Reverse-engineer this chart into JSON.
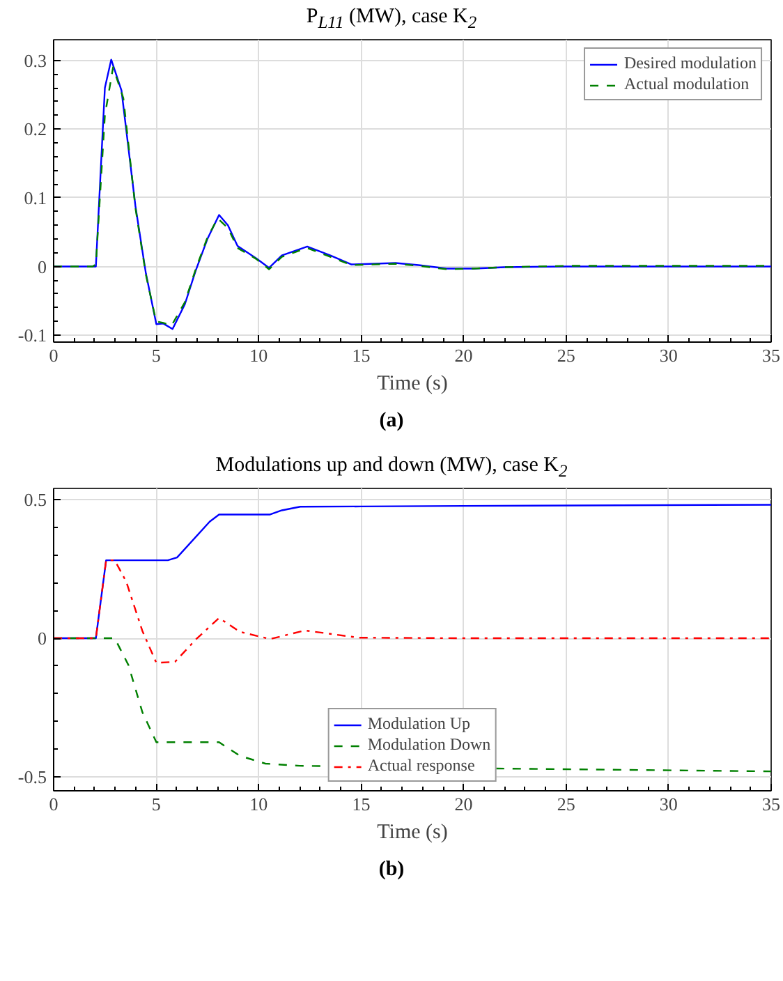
{
  "chart_data": [
    {
      "type": "line",
      "title": "P$_{L11}$ (MW), case K$_{2}$",
      "xlabel": "Time (s)",
      "annotations": [
        "(a)"
      ],
      "xlim": [
        0,
        35
      ],
      "ylim": [
        -0.11,
        0.33
      ],
      "xticks": [
        0,
        5,
        10,
        15,
        20,
        25,
        30,
        35
      ],
      "yticks": [
        -0.1,
        0,
        0.1,
        0.2,
        0.3
      ],
      "grid": true,
      "legend": "top right",
      "series": [
        {
          "name": "Desired modulation",
          "color": "#0000ff",
          "line_style": "solid",
          "x": [
            0,
            2.06,
            2.5,
            2.81,
            3.31,
            3.99,
            4.5,
            5.01,
            5.35,
            5.8,
            6.4,
            6.93,
            7.5,
            8.07,
            8.5,
            8.97,
            9.88,
            10.51,
            11.13,
            12.37,
            13.5,
            14.53,
            16.68,
            17.8,
            19.17,
            20.5,
            22,
            25,
            30,
            35
          ],
          "values": [
            0,
            0,
            0.26,
            0.301,
            0.256,
            0.088,
            -0.01,
            -0.084,
            -0.083,
            -0.091,
            -0.055,
            -0.006,
            0.04,
            0.075,
            0.06,
            0.03,
            0.012,
            -0.002,
            0.016,
            0.029,
            0.016,
            0.003,
            0.005,
            0.002,
            -0.003,
            -0.003,
            -0.001,
            0,
            0,
            0
          ]
        },
        {
          "name": "Actual modulation",
          "color": "#008000",
          "line_style": "dashed",
          "x": [
            0,
            1.9,
            2.06,
            2.5,
            2.9,
            3.4,
            3.99,
            4.5,
            5.0,
            5.35,
            5.75,
            6.4,
            6.93,
            7.5,
            8.0,
            8.5,
            8.97,
            9.88,
            10.51,
            11.13,
            12.37,
            13.5,
            14.53,
            16.68,
            17.8,
            19.17,
            20.5,
            22,
            25,
            30,
            35
          ],
          "values": [
            0,
            0,
            0.003,
            0.22,
            0.29,
            0.245,
            0.085,
            -0.012,
            -0.08,
            -0.082,
            -0.086,
            -0.052,
            -0.004,
            0.042,
            0.07,
            0.056,
            0.027,
            0.011,
            -0.004,
            0.014,
            0.027,
            0.014,
            0.002,
            0.004,
            0.001,
            -0.004,
            -0.003,
            -0.001,
            0.001,
            0.001,
            0.001
          ]
        }
      ]
    },
    {
      "type": "line",
      "title": "Modulations up and down (MW), case K$_{2}$",
      "xlabel": "Time (s)",
      "annotations": [
        "(b)"
      ],
      "xlim": [
        0,
        35
      ],
      "ylim": [
        -0.55,
        0.54
      ],
      "xticks": [
        0,
        5,
        10,
        15,
        20,
        25,
        30,
        35
      ],
      "yticks": [
        -0.5,
        0,
        0.5
      ],
      "grid": true,
      "legend": "bottom",
      "series": [
        {
          "name": "Modulation Up",
          "color": "#0000ff",
          "line_style": "solid",
          "x": [
            0,
            2.06,
            2.56,
            5.57,
            6.02,
            7.61,
            8.07,
            10.56,
            11.13,
            12.03,
            15,
            20,
            35
          ],
          "values": [
            0,
            0,
            0.281,
            0.281,
            0.291,
            0.42,
            0.446,
            0.446,
            0.461,
            0.474,
            0.475,
            0.477,
            0.481
          ]
        },
        {
          "name": "Modulation Down",
          "color": "#008000",
          "line_style": "dashed",
          "x": [
            0,
            2.98,
            3.65,
            4.33,
            5.01,
            8.07,
            9.09,
            10.33,
            12,
            22,
            35
          ],
          "values": [
            0,
            0,
            -0.097,
            -0.267,
            -0.375,
            -0.375,
            -0.424,
            -0.452,
            -0.46,
            -0.47,
            -0.48
          ]
        },
        {
          "name": "Actual response",
          "color": "#ff0000",
          "line_style": "dashdot",
          "x": [
            0,
            2.06,
            2.56,
            2.98,
            3.54,
            4.33,
            5.01,
            5.92,
            6.93,
            8.07,
            9.09,
            10.56,
            12.26,
            14.87,
            20,
            35
          ],
          "values": [
            0,
            0,
            0.281,
            0.281,
            0.204,
            0.026,
            -0.089,
            -0.085,
            -0.005,
            0.073,
            0.023,
            -0.003,
            0.028,
            0.002,
            0,
            0
          ]
        }
      ]
    }
  ]
}
